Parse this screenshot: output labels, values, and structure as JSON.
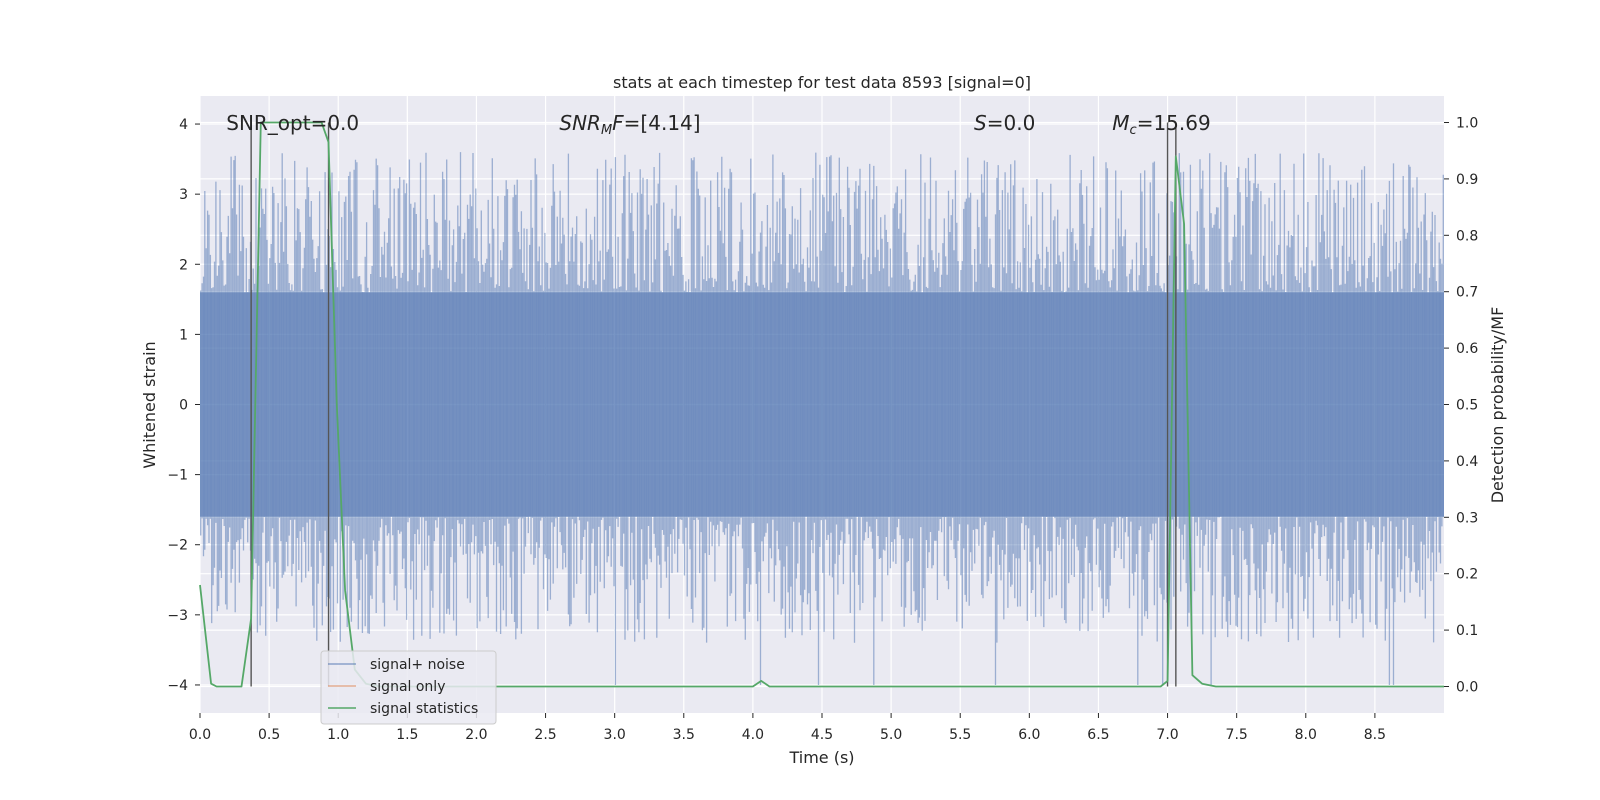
{
  "chart_data": {
    "type": "line",
    "title": "stats at each timestep for test data 8593 [signal=0]",
    "xlabel": "Time (s)",
    "ylabel": "Whitened strain",
    "y2label": "Detection probability/MF",
    "xlim": [
      0.0,
      9.0
    ],
    "ylim": [
      -4.4,
      4.4
    ],
    "y2lim": [
      -0.047,
      1.047
    ],
    "x_ticks": [
      "0.0",
      "0.5",
      "1.0",
      "1.5",
      "2.0",
      "2.5",
      "3.0",
      "3.5",
      "4.0",
      "4.5",
      "5.0",
      "5.5",
      "6.0",
      "6.5",
      "7.0",
      "7.5",
      "8.0",
      "8.5"
    ],
    "y_ticks": [
      "−4",
      "−3",
      "−2",
      "−1",
      "0",
      "1",
      "2",
      "3",
      "4"
    ],
    "y2_ticks": [
      "0.0",
      "0.1",
      "0.2",
      "0.3",
      "0.4",
      "0.5",
      "0.6",
      "0.7",
      "0.8",
      "0.9",
      "1.0"
    ],
    "grid": true,
    "annotations": [
      {
        "x": 0.19,
        "text": "SNR_opt=0.0"
      },
      {
        "x": 2.6,
        "text": "SNR_MF=[4.14]",
        "math": true
      },
      {
        "x": 5.6,
        "text": "S=0.0",
        "italic": true
      },
      {
        "x": 6.6,
        "text": "M_c=15.69",
        "mc": true
      }
    ],
    "vertical_lines_x": [
      0.37,
      0.93,
      7.0,
      7.06
    ],
    "noise_envelope": {
      "band_low": -1.6,
      "band_high": 1.6,
      "peak_high": 3.6,
      "peak_low": -4.0
    },
    "series": [
      {
        "name": "signal+ noise",
        "color": "#4c72b0",
        "kind": "noise"
      },
      {
        "name": "signal only",
        "color": "#dd8452",
        "kind": "line",
        "x": [],
        "y": []
      },
      {
        "name": "signal statistics",
        "color": "#55a868",
        "kind": "prob",
        "x": [
          0.0,
          0.08,
          0.12,
          0.3,
          0.37,
          0.44,
          0.5,
          0.55,
          0.7,
          0.8,
          0.88,
          0.93,
          0.99,
          1.05,
          1.12,
          1.2,
          1.3,
          4.0,
          4.06,
          4.12,
          4.4,
          6.95,
          7.0,
          7.06,
          7.12,
          7.18,
          7.25,
          7.35,
          9.0
        ],
        "y": [
          0.18,
          0.005,
          0.0,
          0.0,
          0.12,
          1.0,
          1.0,
          1.0,
          1.0,
          1.0,
          1.0,
          0.965,
          0.5,
          0.17,
          0.03,
          0.005,
          0.0,
          0.0,
          0.01,
          0.0,
          0.0,
          0.0,
          0.01,
          0.94,
          0.82,
          0.02,
          0.005,
          0.0,
          0.0
        ]
      }
    ],
    "legend_position": "lower-left"
  }
}
